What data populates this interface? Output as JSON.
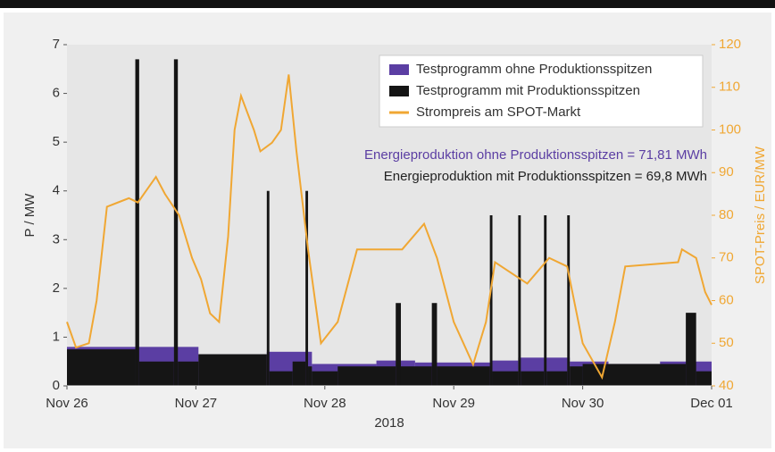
{
  "chart_data": {
    "type": "step-area-line",
    "xlabel": "2018",
    "ylabel": "P / MW",
    "y2label": "SPOT-Preis / EUR/MW",
    "xlim": [
      0,
      5
    ],
    "xticks": [
      {
        "value": 0,
        "label": "Nov 26"
      },
      {
        "value": 1,
        "label": "Nov 27"
      },
      {
        "value": 2,
        "label": "Nov 28"
      },
      {
        "value": 3,
        "label": "Nov 29"
      },
      {
        "value": 4,
        "label": "Nov 30"
      },
      {
        "value": 5,
        "label": "Dec 01"
      }
    ],
    "ylim": [
      0,
      7
    ],
    "yticks": [
      0,
      1,
      2,
      3,
      4,
      5,
      6,
      7
    ],
    "y2lim": [
      40,
      120
    ],
    "y2ticks": [
      40,
      50,
      60,
      70,
      80,
      90,
      100,
      110,
      120
    ],
    "legend": "upper right",
    "annotations": [
      "Energieproduktion ohne Produktionsspitzen = 71,81 MWh",
      "Energieproduktion mit Produktionsspitzen = 69,8 MWh"
    ],
    "series": [
      {
        "name": "Testprogramm ohne Produktionsspitzen",
        "color": "#5b3ea3",
        "x": [
          0,
          1.02,
          1.55,
          1.9,
          2.4,
          2.7,
          3.3,
          3.5,
          3.9,
          4.2,
          4.6,
          5
        ],
        "values": [
          0.8,
          0.65,
          0.7,
          0.45,
          0.52,
          0.48,
          0.52,
          0.58,
          0.5,
          0.45,
          0.5,
          0.5
        ]
      },
      {
        "name": "Testprogramm mit Produktionsspitzen",
        "color": "#151515",
        "x": [
          0,
          0.53,
          0.56,
          0.83,
          0.86,
          1.02,
          1.55,
          1.57,
          1.75,
          1.85,
          1.87,
          1.9,
          2.1,
          2.55,
          2.59,
          2.83,
          2.87,
          3.28,
          3.3,
          3.5,
          3.52,
          3.7,
          3.72,
          3.88,
          3.9,
          4.0,
          4.8,
          4.88,
          5
        ],
        "values": [
          0.75,
          6.7,
          0.5,
          6.7,
          0.5,
          0.65,
          4,
          0.3,
          0.5,
          4,
          0.4,
          0.3,
          0.4,
          1.7,
          0.4,
          1.7,
          0.4,
          3.5,
          0.3,
          3.5,
          0.3,
          3.5,
          0.3,
          3.5,
          0.4,
          0.45,
          1.5,
          0.3,
          0.3
        ]
      },
      {
        "name": "Strompreis am SPOT-Markt",
        "color": "#f0a733",
        "axis": "y2",
        "x": [
          0,
          0.07,
          0.17,
          0.23,
          0.31,
          0.48,
          0.55,
          0.62,
          0.69,
          0.76,
          0.87,
          0.97,
          1.04,
          1.11,
          1.18,
          1.25,
          1.3,
          1.35,
          1.45,
          1.5,
          1.59,
          1.66,
          1.72,
          1.78,
          1.87,
          1.97,
          2.1,
          2.25,
          2.6,
          2.77,
          2.87,
          3.0,
          3.15,
          3.25,
          3.32,
          3.57,
          3.74,
          3.88,
          4.0,
          4.15,
          4.25,
          4.33,
          4.74,
          4.77,
          4.88,
          4.95,
          5
        ],
        "values": [
          55,
          49,
          50,
          60,
          82,
          84,
          83,
          86,
          89,
          85,
          80,
          70,
          65,
          57,
          55,
          75,
          100,
          108,
          100,
          95,
          97,
          100,
          113,
          95,
          72,
          50,
          55,
          72,
          72,
          78,
          70,
          55,
          45,
          55,
          69,
          64,
          70,
          68,
          50,
          42,
          55,
          68,
          69,
          72,
          70,
          62,
          59
        ]
      }
    ]
  }
}
